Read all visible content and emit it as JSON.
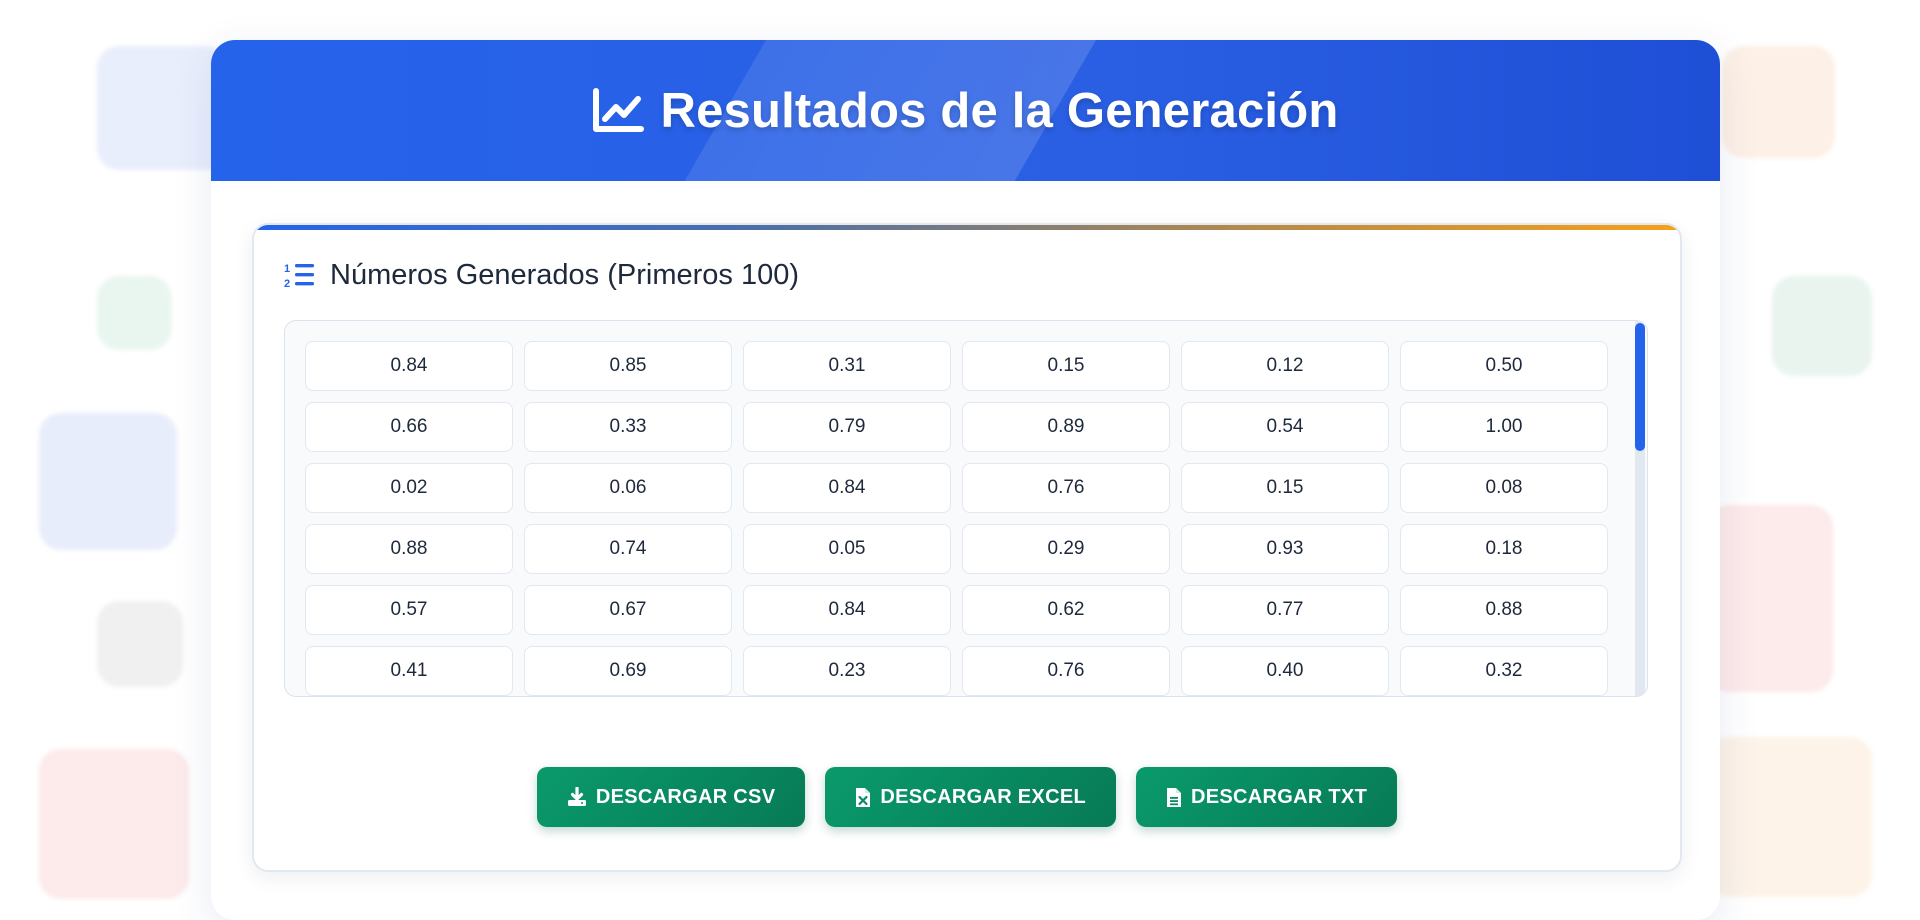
{
  "header": {
    "title": "Resultados de la Generación",
    "icon": "chart-line-icon"
  },
  "card": {
    "title": "Números Generados (Primeros 100)",
    "icon": "list-ol-icon"
  },
  "numbers": {
    "rows": [
      [
        "0.84",
        "0.85",
        "0.31",
        "0.15",
        "0.12",
        "0.50"
      ],
      [
        "0.66",
        "0.33",
        "0.79",
        "0.89",
        "0.54",
        "1.00"
      ],
      [
        "0.02",
        "0.06",
        "0.84",
        "0.76",
        "0.15",
        "0.08"
      ],
      [
        "0.88",
        "0.74",
        "0.05",
        "0.29",
        "0.93",
        "0.18"
      ],
      [
        "0.57",
        "0.67",
        "0.84",
        "0.62",
        "0.77",
        "0.88"
      ],
      [
        "0.41",
        "0.69",
        "0.23",
        "0.76",
        "0.40",
        "0.32"
      ]
    ]
  },
  "buttons": {
    "csv": {
      "label": "DESCARGAR CSV",
      "icon": "download-icon"
    },
    "excel": {
      "label": "DESCARGAR EXCEL",
      "icon": "file-excel-icon"
    },
    "txt": {
      "label": "DESCARGAR TXT",
      "icon": "file-text-icon"
    }
  },
  "colors": {
    "accent": "#2563eb",
    "button": "#0a9a6c",
    "topbar_end": "#f5a11a"
  }
}
